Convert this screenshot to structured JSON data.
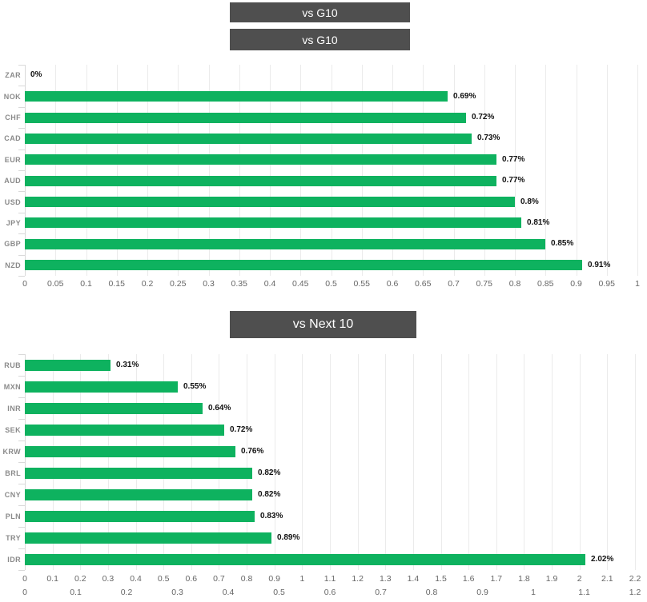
{
  "page": {
    "background": "#ffffff",
    "header_bg": "#4f4f4f",
    "accent_green": "#0eb25f",
    "gridline_color": "#ebebeb",
    "axis_text_color": "#666666",
    "category_text_color": "#8a8a8a"
  },
  "headers": [
    {
      "label": "vs G10"
    },
    {
      "label": "vs G10"
    },
    {
      "label": "vs Next 10"
    }
  ],
  "chart_data": [
    {
      "type": "bar",
      "orientation": "horizontal",
      "title": "vs G10",
      "categories": [
        "ZAR",
        "NOK",
        "CHF",
        "CAD",
        "EUR",
        "AUD",
        "USD",
        "JPY",
        "GBP",
        "NZD"
      ],
      "values": [
        0,
        0.69,
        0.72,
        0.73,
        0.77,
        0.77,
        0.8,
        0.81,
        0.85,
        0.91
      ],
      "data_labels": [
        "0%",
        "0.69%",
        "0.72%",
        "0.73%",
        "0.77%",
        "0.77%",
        "0.8%",
        "0.81%",
        "0.85%",
        "0.91%"
      ],
      "xlim": [
        0,
        1
      ],
      "x_ticks": [
        "0",
        "0.05",
        "0.1",
        "0.15",
        "0.2",
        "0.25",
        "0.3",
        "0.35",
        "0.4",
        "0.45",
        "0.5",
        "0.55",
        "0.6",
        "0.65",
        "0.7",
        "0.75",
        "0.8",
        "0.85",
        "0.9",
        "0.95",
        "1"
      ],
      "bar_color": "#0eb25f",
      "grid": true,
      "legend": "none",
      "value_label_style": "bold black at end of bar, values in percent"
    },
    {
      "type": "bar",
      "orientation": "horizontal",
      "title": "vs Next 10",
      "categories": [
        "RUB",
        "MXN",
        "INR",
        "SEK",
        "KRW",
        "BRL",
        "CNY",
        "PLN",
        "TRY",
        "IDR"
      ],
      "values": [
        0.31,
        0.55,
        0.64,
        0.72,
        0.76,
        0.82,
        0.82,
        0.83,
        0.89,
        2.02
      ],
      "data_labels": [
        "0.31%",
        "0.55%",
        "0.64%",
        "0.72%",
        "0.76%",
        "0.82%",
        "0.82%",
        "0.83%",
        "0.89%",
        "2.02%"
      ],
      "xlim": [
        0,
        2.2
      ],
      "x_ticks": [
        "0",
        "0.1",
        "0.2",
        "0.3",
        "0.4",
        "0.5",
        "0.6",
        "0.7",
        "0.8",
        "0.9",
        "1",
        "1.1",
        "1.2",
        "1.3",
        "1.4",
        "1.5",
        "1.6",
        "1.7",
        "1.8",
        "1.9",
        "2",
        "2.1",
        "2.2"
      ],
      "bar_color": "#0eb25f",
      "grid": true,
      "legend": "none",
      "value_label_style": "bold black at end of bar, values in percent"
    },
    {
      "type": "bar",
      "orientation": "horizontal",
      "title": "clipped chart - only top edge of x-axis labels visible at bottom of screenshot",
      "categories": [],
      "values": [],
      "data_labels": [],
      "xlim": [
        0,
        1.2
      ],
      "x_ticks": [
        "0",
        "0.1",
        "0.2",
        "0.3",
        "0.4",
        "0.5",
        "0.6",
        "0.7",
        "0.8",
        "0.9",
        "1",
        "1.1",
        "1.2"
      ],
      "bar_color": "#0eb25f",
      "grid": false,
      "legend": "none"
    }
  ]
}
